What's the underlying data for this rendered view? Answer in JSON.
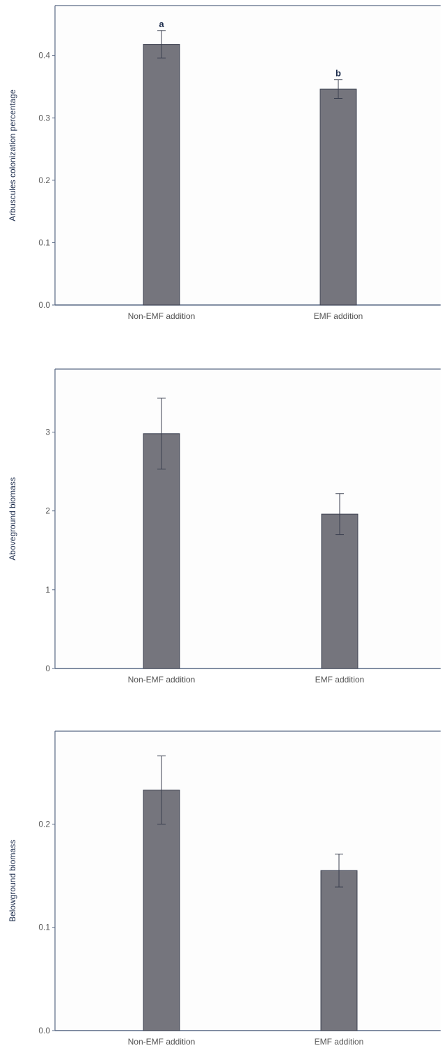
{
  "colors": {
    "bar_fill": "#75757d",
    "bar_stroke": "#3a3f4f",
    "axis": "#5a6a85",
    "panel_bg": "#fdfdfd",
    "errorbar": "#3a3f4f"
  },
  "chart_data": [
    {
      "type": "bar",
      "categories": [
        "Non-EMF addition",
        "EMF addition"
      ],
      "values": [
        0.418,
        0.346
      ],
      "errors": [
        0.022,
        0.015
      ],
      "significance": [
        "a",
        "b"
      ],
      "ylabel": "Arbuscules colonization percentage",
      "ylim": [
        0,
        0.48
      ],
      "yticks": [
        0.0,
        0.1,
        0.2,
        0.3,
        0.4
      ],
      "ytick_labels": [
        "0.0",
        "0.1",
        "0.2",
        "0.3",
        "0.4"
      ],
      "grid": false
    },
    {
      "type": "bar",
      "categories": [
        "Non-EMF addition",
        "EMF addition"
      ],
      "values": [
        2.98,
        1.96
      ],
      "errors": [
        0.45,
        0.26
      ],
      "significance": [
        "",
        ""
      ],
      "ylabel": "Aboveground biomass",
      "ylim": [
        0,
        3.8
      ],
      "yticks": [
        0,
        1,
        2,
        3
      ],
      "ytick_labels": [
        "0",
        "1",
        "2",
        "3"
      ],
      "grid": false
    },
    {
      "type": "bar",
      "categories": [
        "Non-EMF addition",
        "EMF addition"
      ],
      "values": [
        0.233,
        0.155
      ],
      "errors": [
        0.033,
        0.016
      ],
      "significance": [
        "",
        ""
      ],
      "ylabel": "Belowground biomass",
      "ylim": [
        0,
        0.29
      ],
      "yticks": [
        0.0,
        0.1,
        0.2
      ],
      "ytick_labels": [
        "0.0",
        "0.1",
        "0.2"
      ],
      "grid": false
    }
  ]
}
